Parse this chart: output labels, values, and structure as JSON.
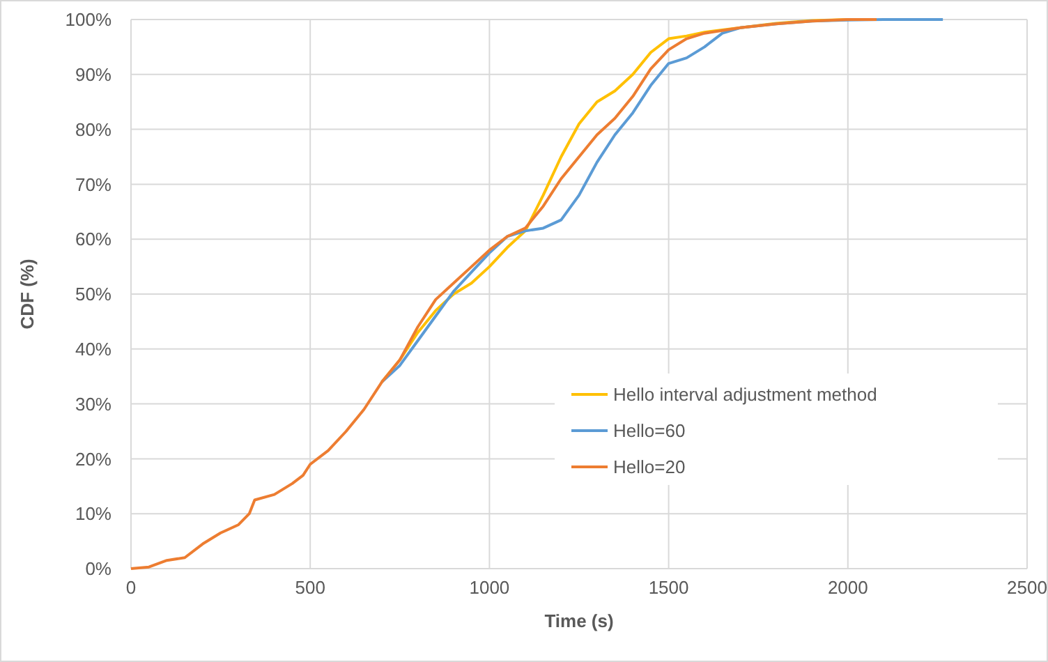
{
  "chart_data": {
    "type": "line",
    "xlabel": "Time (s)",
    "ylabel": "CDF (%)",
    "xlim": [
      0,
      2500
    ],
    "xticks": [
      0,
      500,
      1000,
      1500,
      2000,
      2500
    ],
    "ylim": [
      0,
      100
    ],
    "yticks": [
      {
        "value": 0,
        "label": "0%"
      },
      {
        "value": 10,
        "label": "10%"
      },
      {
        "value": 20,
        "label": "20%"
      },
      {
        "value": 30,
        "label": "30%"
      },
      {
        "value": 40,
        "label": "40%"
      },
      {
        "value": 50,
        "label": "50%"
      },
      {
        "value": 60,
        "label": "60%"
      },
      {
        "value": 70,
        "label": "70%"
      },
      {
        "value": 80,
        "label": "80%"
      },
      {
        "value": 90,
        "label": "90%"
      },
      {
        "value": 100,
        "label": "100%"
      }
    ],
    "grid": true,
    "legend": "right",
    "marker": "none",
    "line_style": "solid",
    "series": [
      {
        "name": "Hello interval adjustment method",
        "color": "#ffc000",
        "x": [
          700,
          750,
          800,
          850,
          900,
          950,
          1000,
          1050,
          1100,
          1150,
          1200,
          1250,
          1300,
          1350,
          1400,
          1450,
          1500,
          1550,
          1600,
          1700,
          1800,
          1900,
          2000,
          2080
        ],
        "values": [
          34,
          38,
          43,
          47,
          50,
          52,
          55,
          58.5,
          61.5,
          68,
          75,
          81,
          85,
          87,
          90,
          94,
          96.5,
          97,
          97.7,
          98.5,
          99.3,
          99.8,
          100,
          100
        ]
      },
      {
        "name": "Hello=60",
        "color": "#5b9bd5",
        "x": [
          700,
          750,
          800,
          850,
          900,
          950,
          1000,
          1050,
          1100,
          1150,
          1200,
          1250,
          1300,
          1350,
          1400,
          1450,
          1500,
          1550,
          1600,
          1650,
          1700,
          1800,
          1900,
          2000,
          2100,
          2265
        ],
        "values": [
          34,
          37,
          41.5,
          46,
          50.5,
          54,
          57.5,
          60.5,
          61.5,
          62,
          63.5,
          68,
          74,
          79,
          83,
          88,
          92,
          93,
          95,
          97.5,
          98.5,
          99.2,
          99.7,
          99.9,
          100,
          100
        ]
      },
      {
        "name": "Hello=20",
        "color": "#ed7d31",
        "x": [
          0,
          50,
          100,
          150,
          200,
          250,
          300,
          330,
          345,
          400,
          450,
          480,
          500,
          550,
          600,
          650,
          700,
          750,
          800,
          850,
          900,
          950,
          1000,
          1050,
          1100,
          1150,
          1200,
          1250,
          1300,
          1350,
          1400,
          1450,
          1500,
          1550,
          1600,
          1700,
          1800,
          1900,
          2000,
          2080
        ],
        "values": [
          0,
          0.3,
          1.5,
          2,
          4.5,
          6.5,
          8,
          10,
          12.5,
          13.5,
          15.5,
          17,
          19,
          21.5,
          25,
          29,
          34,
          38,
          44,
          49,
          52,
          55,
          58,
          60.5,
          62,
          66,
          71,
          75,
          79,
          82,
          86,
          91,
          94.5,
          96.5,
          97.5,
          98.5,
          99.2,
          99.7,
          100,
          100
        ]
      }
    ]
  }
}
